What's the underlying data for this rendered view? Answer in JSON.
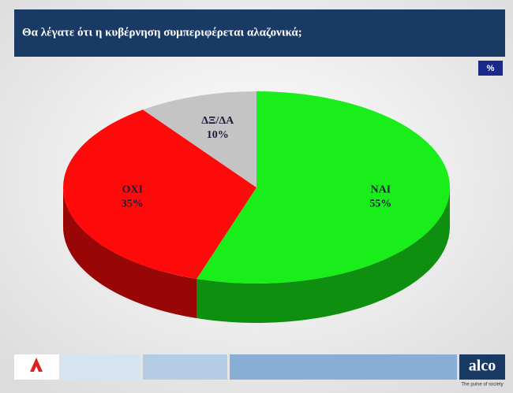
{
  "header": {
    "title": "Θα λέγατε ότι η κυβέρνηση συμπεριφέρεται αλαζονικά;"
  },
  "unit_badge": "%",
  "chart_data": {
    "type": "pie",
    "categories": [
      "ΝΑΙ",
      "ΟΧΙ",
      "ΔΞ/ΔΑ"
    ],
    "values": [
      55,
      35,
      10
    ],
    "value_labels": [
      "55%",
      "35%",
      "10%"
    ],
    "colors": [
      "#1aee1a",
      "#ff0a0a",
      "#c4c4c4"
    ]
  },
  "footer": {
    "logo": "alco",
    "tagline": "The pulse of society"
  }
}
